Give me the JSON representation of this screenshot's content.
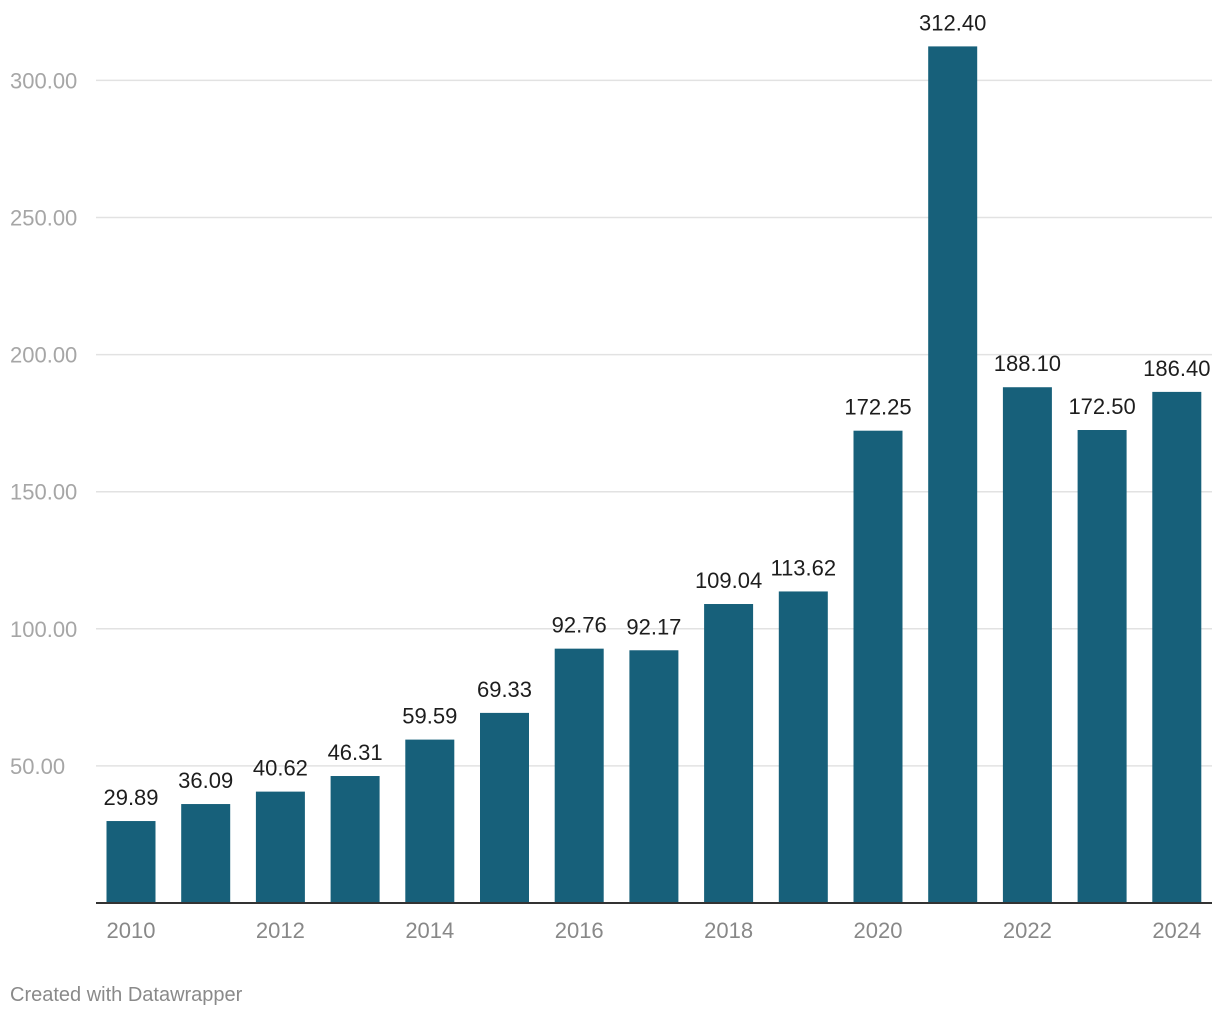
{
  "chart_data": {
    "type": "bar",
    "categories": [
      "2010",
      "2011",
      "2012",
      "2013",
      "2014",
      "2015",
      "2016",
      "2017",
      "2018",
      "2019",
      "2020",
      "2021",
      "2022",
      "2023",
      "2024"
    ],
    "values": [
      29.89,
      36.09,
      40.62,
      46.31,
      59.59,
      69.33,
      92.76,
      92.17,
      109.04,
      113.62,
      172.25,
      312.4,
      188.1,
      172.5,
      186.4
    ],
    "value_labels": [
      "29.89",
      "36.09",
      "40.62",
      "46.31",
      "59.59",
      "69.33",
      "92.76",
      "92.17",
      "109.04",
      "113.62",
      "172.25",
      "312.40",
      "188.10",
      "172.50",
      "186.40"
    ],
    "x_tick_labels": [
      "2010",
      "2012",
      "2014",
      "2016",
      "2018",
      "2020",
      "2022",
      "2024"
    ],
    "y_ticks": [
      50,
      100,
      150,
      200,
      250,
      300
    ],
    "y_tick_labels": [
      "50.00",
      "100.00",
      "150.00",
      "200.00",
      "250.00",
      "300.00"
    ],
    "ylim": [
      0,
      300
    ],
    "title": "",
    "xlabel": "",
    "ylabel": "",
    "grid": true,
    "bar_color": "#17607a"
  },
  "footer": {
    "credit": "Created with Datawrapper"
  }
}
